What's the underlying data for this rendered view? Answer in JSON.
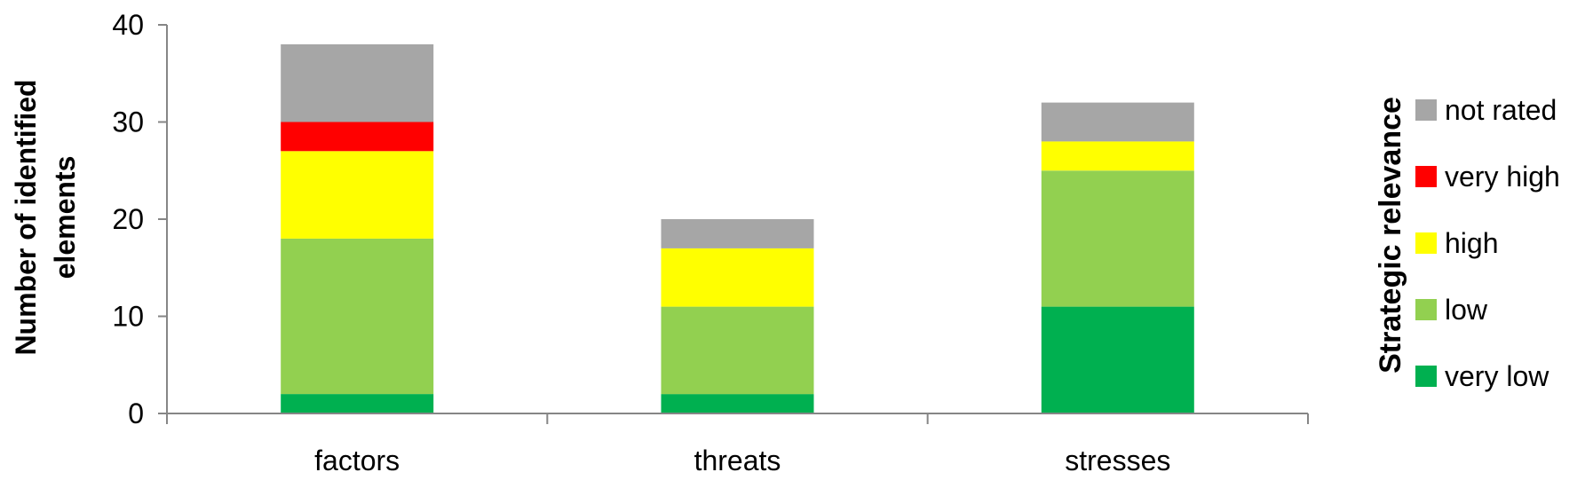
{
  "chart_data": {
    "type": "bar",
    "stacked": true,
    "categories": [
      "factors",
      "threats",
      "stresses"
    ],
    "series": [
      {
        "name": "very low",
        "color": "#00b050",
        "values": [
          2,
          2,
          11
        ]
      },
      {
        "name": "low",
        "color": "#92d050",
        "values": [
          16,
          9,
          14
        ]
      },
      {
        "name": "high",
        "color": "#ffff00",
        "values": [
          9,
          6,
          3
        ]
      },
      {
        "name": "very high",
        "color": "#ff0000",
        "values": [
          3,
          0,
          0
        ]
      },
      {
        "name": "not rated",
        "color": "#a6a6a6",
        "values": [
          8,
          3,
          4
        ]
      }
    ],
    "ylabel_lines": [
      "Number of identified",
      "elements"
    ],
    "ylim": [
      0,
      40
    ],
    "yticks": [
      0,
      10,
      20,
      30,
      40
    ],
    "legend": {
      "title": "Strategic relevance",
      "placement": "right",
      "order": [
        "not rated",
        "very high",
        "high",
        "low",
        "very low"
      ]
    },
    "grid": false
  }
}
